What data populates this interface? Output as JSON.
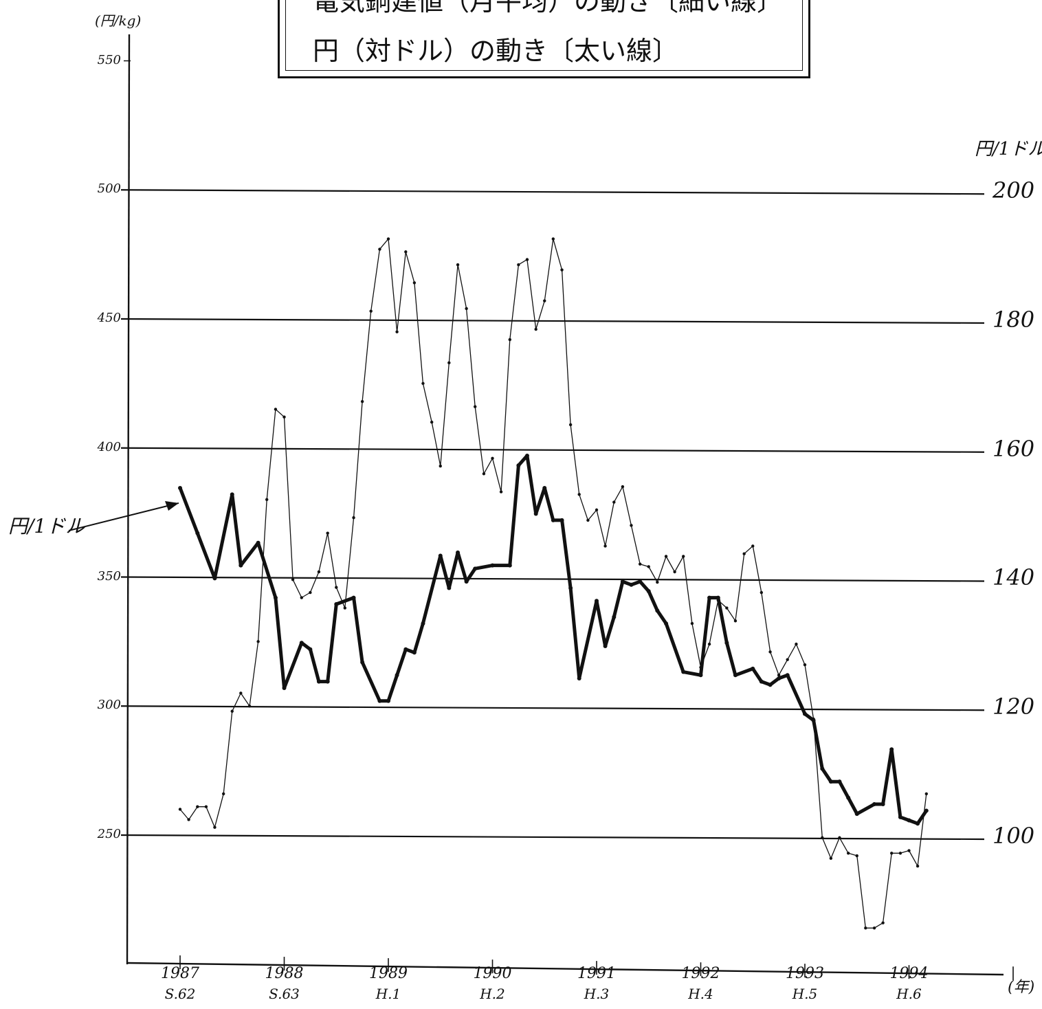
{
  "title": {
    "line1": "電気銅建値（月平均）の動き〔細い線〕",
    "line2": "円（対ドル）の動き〔太い線〕"
  },
  "left_axis_unit": "(円/kg)",
  "right_axis_unit": "円/1ドル",
  "x_axis_unit": "(年)",
  "pointer_label": "円/1ドル",
  "colors": {
    "ink": "#111111",
    "paper": "#ffffff"
  },
  "chart_data": {
    "type": "line",
    "x_unit": "year",
    "xlim": [
      1987,
      1995
    ],
    "x_ticks": [
      {
        "value": 1987,
        "year": "1987",
        "era": "S.62"
      },
      {
        "value": 1988,
        "year": "1988",
        "era": "S.63"
      },
      {
        "value": 1989,
        "year": "1989",
        "era": "H.1"
      },
      {
        "value": 1990,
        "year": "1990",
        "era": "H.2"
      },
      {
        "value": 1991,
        "year": "1991",
        "era": "H.3"
      },
      {
        "value": 1992,
        "year": "1992",
        "era": "H.4"
      },
      {
        "value": 1993,
        "year": "1993",
        "era": "H.5"
      },
      {
        "value": 1994,
        "year": "1994",
        "era": "H.6"
      },
      {
        "value": 1995,
        "year": "",
        "era": ""
      }
    ],
    "y_left": {
      "ylim": [
        200,
        560
      ],
      "ticks": [
        250,
        300,
        350,
        400,
        450,
        500,
        550
      ]
    },
    "y_right": {
      "ylim": [
        80,
        224
      ],
      "ticks": [
        100,
        120,
        140,
        160,
        180,
        200
      ]
    },
    "grid_y": [
      250,
      300,
      350,
      400,
      450,
      500
    ],
    "series": [
      {
        "axis": "left",
        "style": "thin",
        "points": [
          [
            1987.0,
            260
          ],
          [
            1987.083,
            256
          ],
          [
            1987.167,
            261
          ],
          [
            1987.25,
            261
          ],
          [
            1987.333,
            253
          ],
          [
            1987.417,
            266
          ],
          [
            1987.5,
            298
          ],
          [
            1987.583,
            305
          ],
          [
            1987.667,
            300
          ],
          [
            1987.75,
            325
          ],
          [
            1987.833,
            380
          ],
          [
            1987.917,
            415
          ],
          [
            1988.0,
            412
          ],
          [
            1988.083,
            349
          ],
          [
            1988.167,
            342
          ],
          [
            1988.25,
            344
          ],
          [
            1988.333,
            352
          ],
          [
            1988.417,
            367
          ],
          [
            1988.5,
            346
          ],
          [
            1988.583,
            338
          ],
          [
            1988.667,
            373
          ],
          [
            1988.75,
            418
          ],
          [
            1988.833,
            453
          ],
          [
            1988.917,
            477
          ],
          [
            1989.0,
            481
          ],
          [
            1989.083,
            445
          ],
          [
            1989.167,
            476
          ],
          [
            1989.25,
            464
          ],
          [
            1989.333,
            425
          ],
          [
            1989.417,
            410
          ],
          [
            1989.5,
            393
          ],
          [
            1989.583,
            433
          ],
          [
            1989.667,
            471
          ],
          [
            1989.75,
            454
          ],
          [
            1989.833,
            416
          ],
          [
            1989.917,
            390
          ],
          [
            1990.0,
            396
          ],
          [
            1990.083,
            383
          ],
          [
            1990.167,
            442
          ],
          [
            1990.25,
            471
          ],
          [
            1990.333,
            473
          ],
          [
            1990.417,
            446
          ],
          [
            1990.5,
            457
          ],
          [
            1990.583,
            481
          ],
          [
            1990.667,
            469
          ],
          [
            1990.75,
            409
          ],
          [
            1990.833,
            382
          ],
          [
            1990.917,
            372
          ],
          [
            1991.0,
            376
          ],
          [
            1991.083,
            362
          ],
          [
            1991.167,
            379
          ],
          [
            1991.25,
            385
          ],
          [
            1991.333,
            370
          ],
          [
            1991.417,
            355
          ],
          [
            1991.5,
            354
          ],
          [
            1991.583,
            348
          ],
          [
            1991.667,
            358
          ],
          [
            1991.75,
            352
          ],
          [
            1991.833,
            358
          ],
          [
            1991.917,
            332
          ],
          [
            1992.0,
            315
          ],
          [
            1992.083,
            324
          ],
          [
            1992.167,
            341
          ],
          [
            1992.25,
            338
          ],
          [
            1992.333,
            333
          ],
          [
            1992.417,
            359
          ],
          [
            1992.5,
            362
          ],
          [
            1992.583,
            344
          ],
          [
            1992.667,
            321
          ],
          [
            1992.75,
            312
          ],
          [
            1992.833,
            318
          ],
          [
            1992.917,
            324
          ],
          [
            1993.0,
            316
          ],
          [
            1993.083,
            295
          ],
          [
            1993.167,
            249
          ],
          [
            1993.25,
            241
          ],
          [
            1993.333,
            249
          ],
          [
            1993.417,
            243
          ],
          [
            1993.5,
            242
          ],
          [
            1993.583,
            214
          ],
          [
            1993.667,
            214
          ],
          [
            1993.75,
            216
          ],
          [
            1993.833,
            243
          ],
          [
            1993.917,
            243
          ],
          [
            1994.0,
            244
          ],
          [
            1994.083,
            238
          ],
          [
            1994.167,
            266
          ]
        ]
      },
      {
        "axis": "right",
        "style": "thick",
        "points": [
          [
            1987.0,
            154
          ],
          [
            1987.167,
            147
          ],
          [
            1987.333,
            140
          ],
          [
            1987.5,
            153
          ],
          [
            1987.583,
            142
          ],
          [
            1987.75,
            145.5
          ],
          [
            1987.917,
            137
          ],
          [
            1988.0,
            123
          ],
          [
            1988.167,
            130
          ],
          [
            1988.25,
            129
          ],
          [
            1988.333,
            124
          ],
          [
            1988.417,
            124
          ],
          [
            1988.5,
            136
          ],
          [
            1988.667,
            137
          ],
          [
            1988.75,
            127
          ],
          [
            1988.917,
            121
          ],
          [
            1989.0,
            121
          ],
          [
            1989.083,
            125
          ],
          [
            1989.167,
            129
          ],
          [
            1989.25,
            128.5
          ],
          [
            1989.333,
            133
          ],
          [
            1989.5,
            143.5
          ],
          [
            1989.583,
            138.5
          ],
          [
            1989.667,
            144
          ],
          [
            1989.75,
            139.5
          ],
          [
            1989.833,
            141.5
          ],
          [
            1990.0,
            142
          ],
          [
            1990.167,
            142
          ],
          [
            1990.25,
            157.5
          ],
          [
            1990.333,
            159
          ],
          [
            1990.417,
            150
          ],
          [
            1990.5,
            154
          ],
          [
            1990.583,
            149
          ],
          [
            1990.667,
            149
          ],
          [
            1990.75,
            138.5
          ],
          [
            1990.833,
            124.5
          ],
          [
            1991.0,
            136.5
          ],
          [
            1991.083,
            129.5
          ],
          [
            1991.167,
            134
          ],
          [
            1991.25,
            139.5
          ],
          [
            1991.333,
            139
          ],
          [
            1991.417,
            139.5
          ],
          [
            1991.5,
            138
          ],
          [
            1991.583,
            135
          ],
          [
            1991.667,
            133
          ],
          [
            1991.833,
            125.5
          ],
          [
            1992.0,
            125
          ],
          [
            1992.083,
            137
          ],
          [
            1992.167,
            137
          ],
          [
            1992.25,
            130
          ],
          [
            1992.333,
            125
          ],
          [
            1992.5,
            126
          ],
          [
            1992.583,
            124
          ],
          [
            1992.667,
            123.5
          ],
          [
            1992.75,
            124.5
          ],
          [
            1992.833,
            125
          ],
          [
            1993.0,
            119
          ],
          [
            1993.083,
            118
          ],
          [
            1993.167,
            110.5
          ],
          [
            1993.25,
            108.5
          ],
          [
            1993.333,
            108.5
          ],
          [
            1993.417,
            106
          ],
          [
            1993.5,
            103.5
          ],
          [
            1993.667,
            105
          ],
          [
            1993.75,
            105
          ],
          [
            1993.833,
            113.5
          ],
          [
            1993.917,
            103
          ],
          [
            1994.0,
            102.5
          ],
          [
            1994.083,
            102
          ],
          [
            1994.167,
            104
          ]
        ]
      }
    ]
  }
}
